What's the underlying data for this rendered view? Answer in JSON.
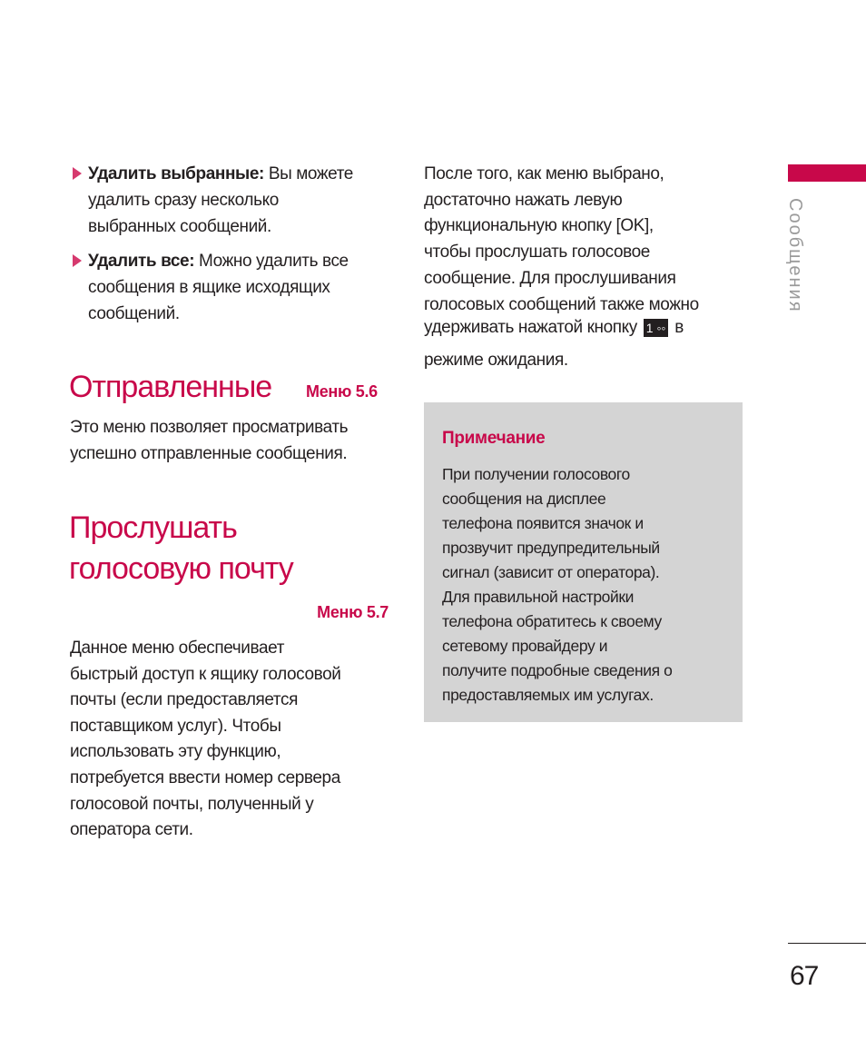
{
  "left": {
    "bullets": [
      {
        "term": "Удалить выбранные:",
        "lines": [
          " Вы можете",
          "удалить сразу несколько",
          "выбранных сообщений."
        ]
      },
      {
        "term": "Удалить все:",
        "lines": [
          " Можно удалить все",
          "сообщения в ящике исходящих",
          "сообщений."
        ]
      }
    ],
    "section1": {
      "title": "Отправленные",
      "menu": "Меню 5.6",
      "lines": [
        "Это меню позволяет просматривать",
        "успешно отправленные сообщения."
      ]
    },
    "section2": {
      "title_lines": [
        "Прослушать",
        "голосовую почту"
      ],
      "menu": "Меню 5.7",
      "lines": [
        "Данное меню обеспечивает",
        "быстрый доступ к ящику голосовой",
        "почты (если предоставляется",
        "поставщиком услуг). Чтобы",
        "использовать эту функцию,",
        "потребуется ввести номер сервера",
        "голосовой почты, полученный у",
        "оператора сети."
      ]
    }
  },
  "right": {
    "lines": [
      "После того, как меню выбрано,",
      "достаточно нажать левую",
      "функциональную кнопку [OK],",
      "чтобы прослушать голосовое",
      "сообщение. Для прослушивания",
      "голосовых сообщений также можно"
    ],
    "key_line_before": "удерживать нажатой кнопку",
    "key_label": "1 ◦◦",
    "key_line_after": "в",
    "last_line": "режиме ожидания.",
    "note": {
      "title": "Примечание",
      "lines": [
        "При получении голосового",
        "сообщения на дисплее",
        "телефона появится значок и",
        "прозвучит предупредительный",
        "сигнал (зависит от оператора).",
        "Для правильной настройки",
        "телефона обратитесь к своему",
        "сетевому провайдеру и",
        "получите подробные сведения о",
        "предоставляемых им услугах."
      ]
    }
  },
  "side_tab": {
    "label": "Сообщения"
  },
  "page_number": "67",
  "colors": {
    "accent": "#c8084a",
    "note_bg": "#d4d4d4",
    "side_label": "#9a9a9a"
  }
}
